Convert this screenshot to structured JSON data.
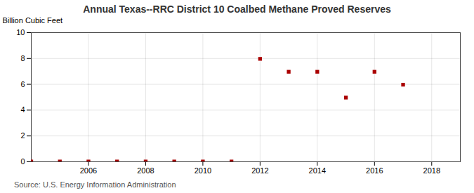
{
  "chart_data": {
    "type": "scatter",
    "title": "Annual Texas--RRC District 10 Coalbed Methane Proved Reserves",
    "ylabel": "Billion Cubic Feet",
    "source": "Source: U.S. Energy Information Administration",
    "x": [
      2004,
      2005,
      2006,
      2007,
      2008,
      2009,
      2010,
      2011,
      2012,
      2013,
      2014,
      2015,
      2016,
      2017
    ],
    "values": [
      0.02,
      0.02,
      0.02,
      0.02,
      0.02,
      0.02,
      0.02,
      0.02,
      7.97,
      6.97,
      6.97,
      4.97,
      6.97,
      5.97
    ],
    "color": "#aa0000",
    "marker": "square",
    "xlim": [
      2004.0,
      2019.0
    ],
    "xticks": [
      2006,
      2008,
      2010,
      2012,
      2014,
      2016,
      2018
    ],
    "ylim": [
      0,
      10
    ],
    "yticks": [
      0,
      2,
      4,
      6,
      8,
      10
    ],
    "grid": true
  }
}
